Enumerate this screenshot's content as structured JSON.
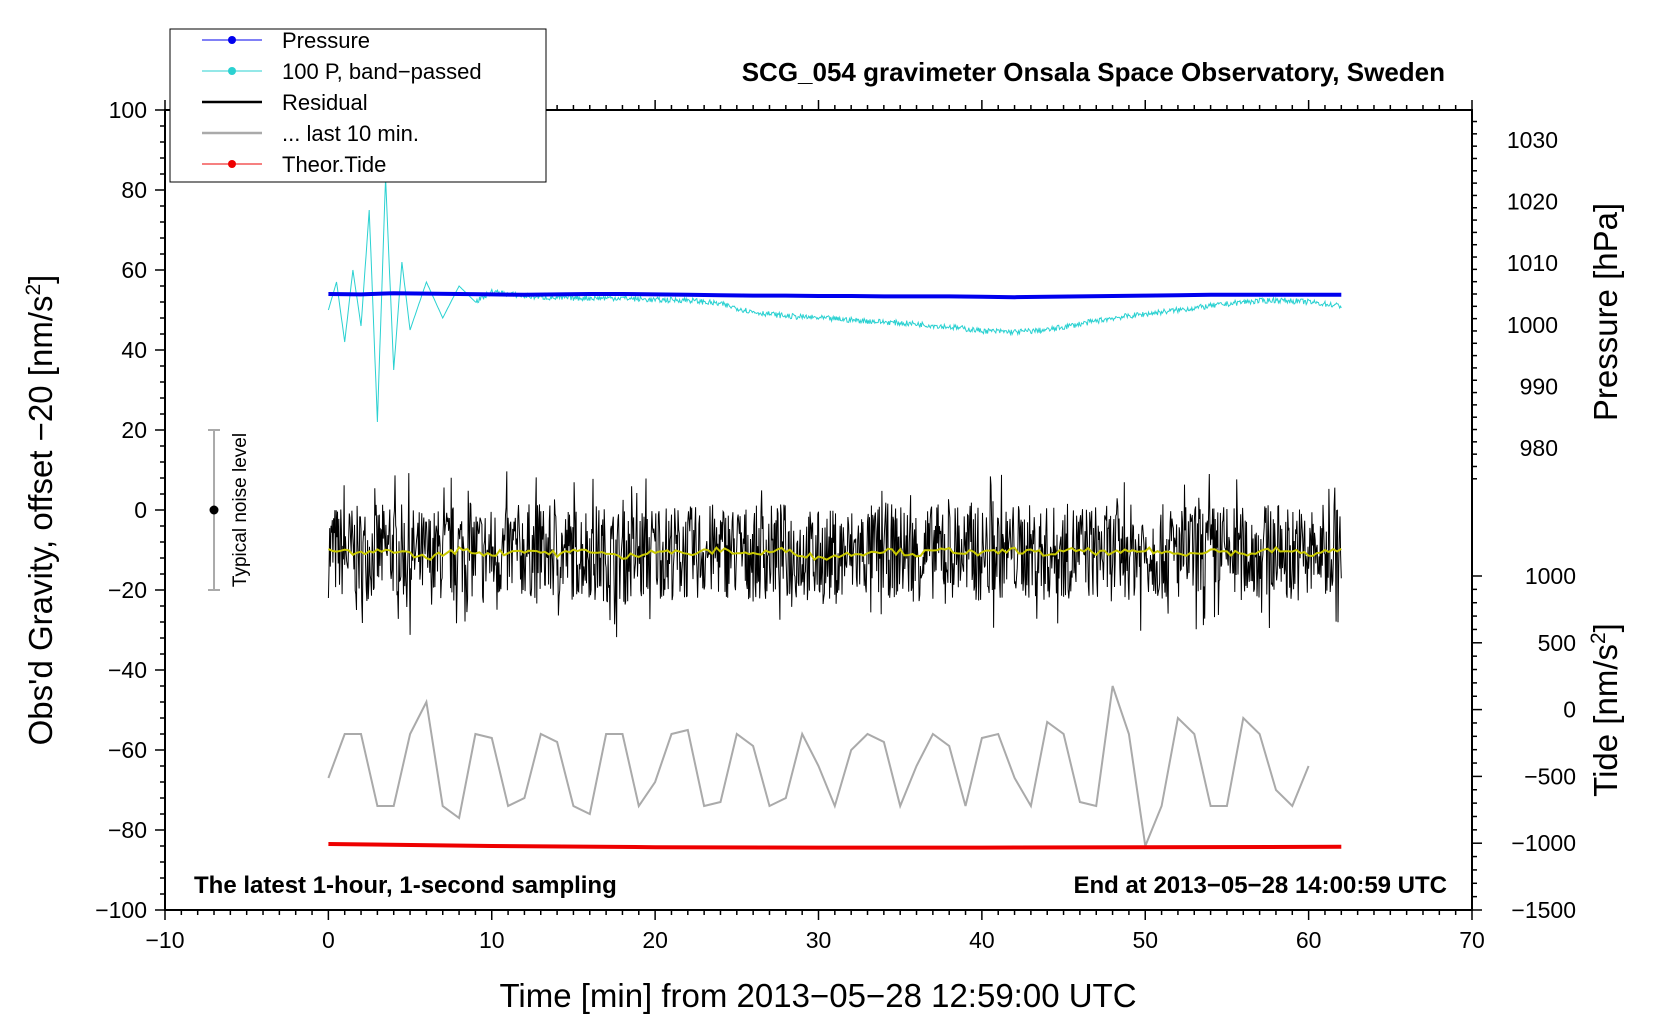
{
  "chart_data": {
    "type": "line",
    "title": "SCG_054 gravimeter Onsala Space Observatory, Sweden",
    "xlabel": "Time [min] from 2013−05−28 12:59:00 UTC",
    "ylabel_left": "Obs'd Gravity, offset −20 [nm/s",
    "ylabel_left_sup": "2",
    "ylabel_left_end": "]",
    "ylabel_right_pressure": "Pressure [hPa]",
    "ylabel_right_tide": "Tide [nm/s",
    "ylabel_right_tide_sup": "2",
    "ylabel_right_tide_end": "]",
    "xlim": [
      -10,
      70
    ],
    "ylim": [
      -100,
      100
    ],
    "x_ticks": [
      {
        "value": -10,
        "label": "−10"
      },
      {
        "value": 0,
        "label": "0"
      },
      {
        "value": 10,
        "label": "10"
      },
      {
        "value": 20,
        "label": "20"
      },
      {
        "value": 30,
        "label": "30"
      },
      {
        "value": 40,
        "label": "40"
      },
      {
        "value": 50,
        "label": "50"
      },
      {
        "value": 60,
        "label": "60"
      },
      {
        "value": 70,
        "label": "70"
      }
    ],
    "y_ticks": [
      {
        "value": 100,
        "label": "100"
      },
      {
        "value": 80,
        "label": "80"
      },
      {
        "value": 60,
        "label": "60"
      },
      {
        "value": 40,
        "label": "40"
      },
      {
        "value": 20,
        "label": "20"
      },
      {
        "value": 0,
        "label": "0"
      },
      {
        "value": -20,
        "label": "−20"
      },
      {
        "value": -40,
        "label": "−40"
      },
      {
        "value": -60,
        "label": "−60"
      },
      {
        "value": -80,
        "label": "−80"
      },
      {
        "value": -100,
        "label": "−100"
      }
    ],
    "pressure_axis": {
      "map_from": [
        980,
        1030
      ],
      "map_to": [
        15.5,
        92.5
      ],
      "ticks": [
        {
          "value": 1030,
          "label": "1030"
        },
        {
          "value": 1020,
          "label": "1020"
        },
        {
          "value": 1010,
          "label": "1010"
        },
        {
          "value": 1000,
          "label": "1000"
        },
        {
          "value": 990,
          "label": "990"
        },
        {
          "value": 980,
          "label": "980"
        }
      ]
    },
    "tide_axis": {
      "map_from": [
        -1500,
        1000
      ],
      "map_to": [
        -100,
        -16.5
      ],
      "ticks": [
        {
          "value": 1000,
          "label": "1000"
        },
        {
          "value": 500,
          "label": "500"
        },
        {
          "value": 0,
          "label": "0"
        },
        {
          "value": -500,
          "label": "−500"
        },
        {
          "value": -1000,
          "label": "−1000"
        },
        {
          "value": -1500,
          "label": "−1500"
        }
      ]
    },
    "legend_position": "top-left",
    "series": [
      {
        "name": "Pressure",
        "color": "#0000ee",
        "marker": true,
        "x": [
          0,
          2,
          4,
          6,
          8,
          10,
          12,
          14,
          16,
          18,
          20,
          22,
          24,
          26,
          28,
          30,
          32,
          34,
          36,
          38,
          40,
          42,
          44,
          46,
          48,
          50,
          52,
          54,
          56,
          58,
          60,
          62
        ],
        "y": [
          54.0,
          53.9,
          54.2,
          54.1,
          54.0,
          53.9,
          53.8,
          53.9,
          54.0,
          54.0,
          53.9,
          53.8,
          53.7,
          53.6,
          53.6,
          53.5,
          53.5,
          53.4,
          53.4,
          53.4,
          53.3,
          53.2,
          53.3,
          53.4,
          53.5,
          53.6,
          53.7,
          53.8,
          53.8,
          53.8,
          53.8,
          53.8
        ]
      },
      {
        "name": "100 P, band−passed",
        "color": "#2ad1d1",
        "marker": true,
        "x": [
          0,
          0.5,
          1.0,
          1.5,
          2.0,
          2.5,
          3.0,
          3.5,
          4.0,
          4.5,
          5.0,
          6.0,
          7.0,
          8.0,
          9.0,
          10,
          12,
          14,
          16,
          18,
          20,
          22,
          24,
          26,
          28,
          30,
          32,
          34,
          36,
          38,
          40,
          42,
          44,
          46,
          48,
          50,
          52,
          54,
          56,
          58,
          60,
          62
        ],
        "y": [
          50,
          57,
          42,
          60,
          46,
          75,
          22,
          83,
          35,
          62,
          45,
          57,
          48,
          56,
          52,
          54.5,
          53.5,
          53.0,
          53.0,
          53.0,
          52.5,
          52.5,
          51.5,
          49.5,
          48.5,
          48.0,
          47.5,
          47.0,
          46.5,
          45.8,
          44.8,
          44.5,
          45.0,
          46.5,
          48.0,
          49.0,
          50.0,
          51.0,
          52.0,
          52.5,
          52.0,
          51.0
        ]
      },
      {
        "name": "Residual",
        "color": "#000000",
        "marker": false,
        "x": [
          0,
          2,
          4,
          6,
          8,
          10,
          12,
          14,
          16,
          18,
          20,
          22,
          24,
          26,
          28,
          30,
          32,
          34,
          36,
          38,
          40,
          42,
          44,
          46,
          48,
          50,
          52,
          54,
          56,
          58,
          60,
          62
        ],
        "y": [
          -10,
          -11,
          -10,
          -12,
          -10,
          -11,
          -10,
          -11,
          -10,
          -12,
          -10,
          -11,
          -10,
          -11,
          -10,
          -12,
          -11,
          -10,
          -11,
          -10,
          -11,
          -10,
          -11,
          -10,
          -11,
          -10,
          -11,
          -10,
          -11,
          -10,
          -11,
          -10
        ],
        "noise_amplitude": 12
      },
      {
        "name": "... last 10 min.",
        "color": "#aaaaaa",
        "marker": false,
        "x": [
          0,
          2,
          4,
          6,
          8,
          10,
          12,
          14,
          16,
          18,
          20,
          22,
          24,
          26,
          28,
          30,
          32,
          34,
          36,
          38,
          40,
          42,
          44,
          46,
          48,
          50,
          52,
          54,
          56,
          58,
          60
        ],
        "y": [
          -67,
          -56,
          -74,
          -48,
          -77,
          -57,
          -72,
          -58,
          -76,
          -56,
          -68,
          -55,
          -73,
          -59,
          -72,
          -64,
          -60,
          -58,
          -64,
          -59,
          -57,
          -67,
          -53,
          -73,
          -44,
          -84,
          -52,
          -74,
          -52,
          -70,
          -64
        ]
      },
      {
        "name": "Theor.Tide",
        "color": "#ee0000",
        "marker": true,
        "x": [
          0,
          10,
          20,
          30,
          40,
          50,
          62
        ],
        "y": [
          -83.5,
          -84.0,
          -84.3,
          -84.4,
          -84.4,
          -84.3,
          -84.2
        ]
      }
    ],
    "annotations": {
      "noise_label": "Typical noise level",
      "noise_bar": {
        "x": -7,
        "y_low": -20,
        "y_high": 20,
        "y_center": 0
      },
      "bottom_left": "The latest 1-hour, 1-second sampling",
      "bottom_right": "End at 2013−05−28 14:00:59 UTC"
    }
  }
}
